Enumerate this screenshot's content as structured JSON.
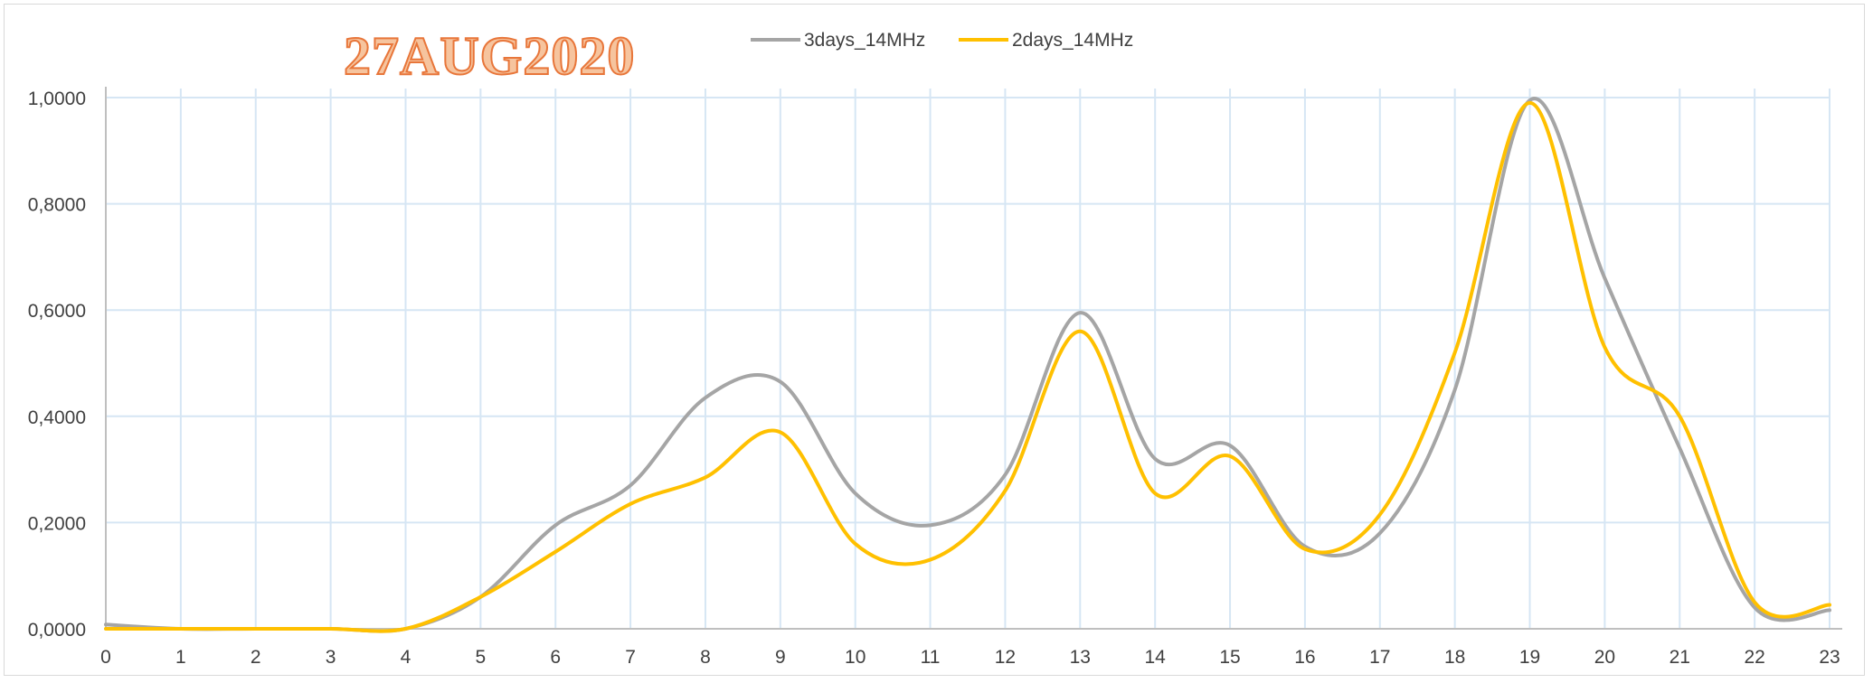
{
  "chart_data": {
    "type": "line",
    "title": "27AUG2020",
    "xlabel": "",
    "ylabel": "",
    "x": [
      0,
      1,
      2,
      3,
      4,
      5,
      6,
      7,
      8,
      9,
      10,
      11,
      12,
      13,
      14,
      15,
      16,
      17,
      18,
      19,
      20,
      21,
      22,
      23
    ],
    "ylim": [
      0,
      1
    ],
    "yticks": [
      "0,0000",
      "0,2000",
      "0,4000",
      "0,6000",
      "0,8000",
      "1,0000"
    ],
    "grid": true,
    "legend_position": "top",
    "smooth": true,
    "series": [
      {
        "name": "3days_14MHz",
        "color": "#a5a5a5",
        "values": [
          0.008,
          0.0,
          0.0,
          0.0,
          0.0,
          0.06,
          0.195,
          0.27,
          0.435,
          0.465,
          0.255,
          0.195,
          0.29,
          0.595,
          0.32,
          0.345,
          0.155,
          0.18,
          0.45,
          0.995,
          0.66,
          0.34,
          0.04,
          0.035
        ]
      },
      {
        "name": "2days_14MHz",
        "color": "#ffc000",
        "values": [
          0.0,
          0.0,
          0.0,
          0.0,
          0.0,
          0.06,
          0.145,
          0.235,
          0.285,
          0.37,
          0.16,
          0.13,
          0.26,
          0.56,
          0.255,
          0.325,
          0.15,
          0.215,
          0.52,
          0.99,
          0.53,
          0.4,
          0.05,
          0.045
        ]
      }
    ]
  }
}
